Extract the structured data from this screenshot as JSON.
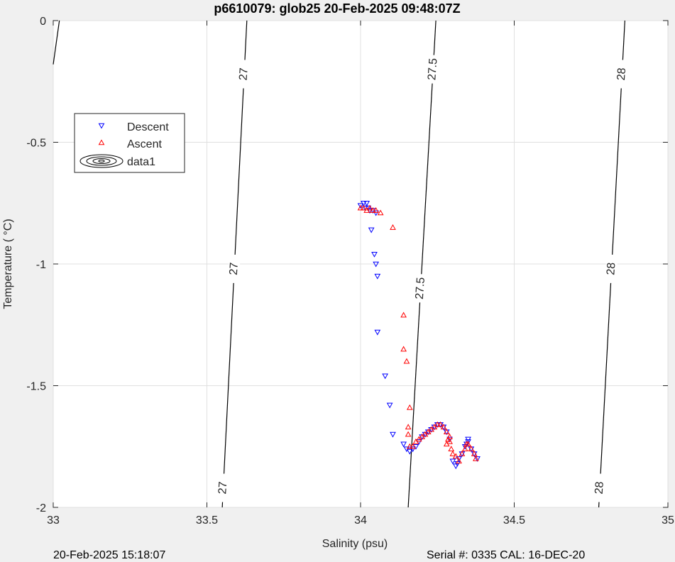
{
  "chart_data": {
    "type": "scatter",
    "title": "p6610079: glob25 20-Feb-2025 09:48:07Z",
    "xlabel": "Salinity (psu)",
    "ylabel": "Temperature (   °C)",
    "xlim": [
      33,
      35
    ],
    "ylim": [
      -2,
      0
    ],
    "xticks": [
      33,
      33.5,
      34,
      34.5,
      35
    ],
    "yticks": [
      0,
      -0.5,
      -1,
      -1.5,
      -2
    ],
    "xtick_labels": [
      "33",
      "33.5",
      "34",
      "34.5",
      "35"
    ],
    "ytick_labels": [
      "0",
      "-0.5",
      "-1",
      "-1.5",
      "-2"
    ],
    "grid": true,
    "legend_position": "top-left",
    "legend": [
      "Descent",
      "Ascent",
      "data1"
    ],
    "contours": [
      {
        "label": "27",
        "top_x": 33.63,
        "bottom_x": 33.55,
        "label_y": [
          -0.22,
          -1.02,
          -1.92
        ]
      },
      {
        "label": "27.5",
        "top_x": 34.245,
        "bottom_x": 34.155,
        "label_y": [
          -0.2,
          -1.1
        ]
      },
      {
        "label": "28",
        "top_x": 34.86,
        "bottom_x": 34.775,
        "label_y": [
          -0.22,
          -1.02,
          -1.92
        ]
      }
    ],
    "series": [
      {
        "name": "Descent",
        "color": "#0000ff",
        "marker": "triangle-down",
        "x": [
          34.0,
          34.01,
          34.02,
          34.015,
          34.025,
          34.03,
          34.04,
          34.05,
          34.035,
          34.045,
          34.05,
          34.055,
          34.055,
          34.08,
          34.095,
          34.105,
          34.14,
          34.15,
          34.16,
          34.17,
          34.18,
          34.19,
          34.2,
          34.21,
          34.22,
          34.23,
          34.24,
          34.25,
          34.26,
          34.27,
          34.28,
          34.29,
          34.3,
          34.31,
          34.315,
          34.32,
          34.33,
          34.34,
          34.35,
          34.36,
          34.37,
          34.38,
          34.35,
          34.345
        ],
        "y": [
          -0.76,
          -0.75,
          -0.75,
          -0.77,
          -0.77,
          -0.78,
          -0.78,
          -0.79,
          -0.86,
          -0.96,
          -1.0,
          -1.05,
          -1.28,
          -1.46,
          -1.58,
          -1.7,
          -1.74,
          -1.76,
          -1.77,
          -1.76,
          -1.75,
          -1.73,
          -1.71,
          -1.7,
          -1.69,
          -1.68,
          -1.67,
          -1.66,
          -1.66,
          -1.67,
          -1.69,
          -1.72,
          -1.81,
          -1.83,
          -1.82,
          -1.8,
          -1.78,
          -1.75,
          -1.73,
          -1.76,
          -1.78,
          -1.8,
          -1.72,
          -1.74
        ]
      },
      {
        "name": "Ascent",
        "color": "#ff0000",
        "marker": "triangle-up",
        "x": [
          34.0,
          34.01,
          34.02,
          34.03,
          34.04,
          34.05,
          34.065,
          34.105,
          34.14,
          34.14,
          34.15,
          34.16,
          34.155,
          34.155,
          34.16,
          34.17,
          34.18,
          34.19,
          34.2,
          34.21,
          34.22,
          34.23,
          34.24,
          34.25,
          34.26,
          34.27,
          34.28,
          34.285,
          34.29,
          34.295,
          34.3,
          34.31,
          34.32,
          34.33,
          34.34,
          34.345,
          34.35,
          34.36,
          34.37,
          34.375,
          34.29,
          34.28
        ],
        "y": [
          -0.77,
          -0.77,
          -0.78,
          -0.77,
          -0.78,
          -0.78,
          -0.79,
          -0.85,
          -1.21,
          -1.35,
          -1.4,
          -1.59,
          -1.67,
          -1.7,
          -1.75,
          -1.75,
          -1.73,
          -1.72,
          -1.71,
          -1.7,
          -1.69,
          -1.68,
          -1.67,
          -1.66,
          -1.66,
          -1.67,
          -1.69,
          -1.72,
          -1.73,
          -1.76,
          -1.78,
          -1.79,
          -1.81,
          -1.78,
          -1.76,
          -1.74,
          -1.74,
          -1.76,
          -1.78,
          -1.8,
          -1.71,
          -1.74
        ]
      }
    ]
  },
  "footer": {
    "left": "20-Feb-2025 15:18:07",
    "right": "Serial #: 0335  CAL: 16-DEC-20"
  }
}
